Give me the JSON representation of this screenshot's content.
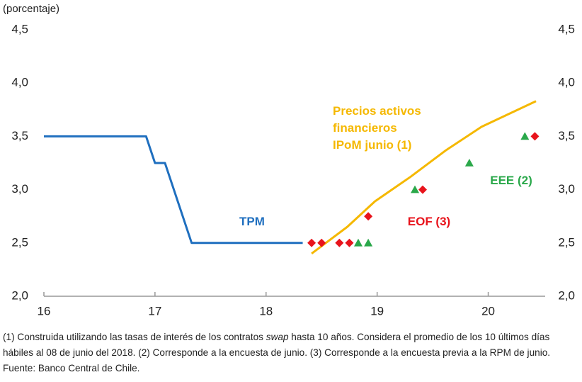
{
  "chart_data": {
    "type": "line",
    "unit_label": "(porcentaje)",
    "xlim": [
      16,
      20.5
    ],
    "xticks": [
      16,
      17,
      18,
      19,
      20
    ],
    "ylim": [
      2.0,
      4.5
    ],
    "yticks": [
      {
        "value": 2.0,
        "label": "2,0"
      },
      {
        "value": 2.5,
        "label": "2,5"
      },
      {
        "value": 3.0,
        "label": "3,0"
      },
      {
        "value": 3.5,
        "label": "3,5"
      },
      {
        "value": 4.0,
        "label": "4,0"
      },
      {
        "value": 4.5,
        "label": "4,5"
      }
    ],
    "y2lim": [
      2.0,
      4.5
    ],
    "y2ticks": [
      {
        "value": 2.0,
        "label": "2,0"
      },
      {
        "value": 2.5,
        "label": "2,5"
      },
      {
        "value": 3.0,
        "label": "3,0"
      },
      {
        "value": 3.5,
        "label": "3,5"
      },
      {
        "value": 4.0,
        "label": "4,0"
      },
      {
        "value": 4.5,
        "label": "4,5"
      }
    ],
    "series": [
      {
        "name": [
          "TPM"
        ],
        "color": "#1f6fbf",
        "marker": "line",
        "x": [
          16,
          16.92,
          17.0,
          17.09,
          17.33,
          18.33
        ],
        "values": [
          3.5,
          3.5,
          3.25,
          3.25,
          2.5,
          2.5
        ]
      },
      {
        "name": [
          "Precios activos",
          "financieros",
          "IPoM junio (1)"
        ],
        "color": "#f5b800",
        "marker": "line",
        "x": [
          18.41,
          18.73,
          18.98,
          19.3,
          19.62,
          19.94,
          20.43
        ],
        "values": [
          2.4,
          2.65,
          2.89,
          3.12,
          3.37,
          3.59,
          3.83
        ]
      },
      {
        "name": [
          "EOF (3)"
        ],
        "color": "#e8141c",
        "marker": "diamond",
        "x": [
          18.41,
          18.5,
          18.66,
          18.75,
          18.92,
          19.41,
          20.42
        ],
        "values": [
          2.5,
          2.5,
          2.5,
          2.5,
          2.75,
          3.0,
          3.5
        ]
      },
      {
        "name": [
          "EEE (2)"
        ],
        "color": "#2aa84a",
        "marker": "triangle",
        "x": [
          18.83,
          18.92,
          19.34,
          19.83,
          20.33
        ],
        "values": [
          2.5,
          2.5,
          3.0,
          3.25,
          3.5
        ]
      }
    ],
    "footnote": [
      "(1) Construida utilizando las tasas de interés de los contratos ",
      "swap",
      "  hasta 10 años. Considera el promedio de los 10 últimos días hábiles al 08 de junio del 2018. (2) Corresponde a la encuesta de junio. (3) Corresponde a la encuesta previa a la RPM de junio. Fuente: Banco Central de Chile."
    ]
  }
}
